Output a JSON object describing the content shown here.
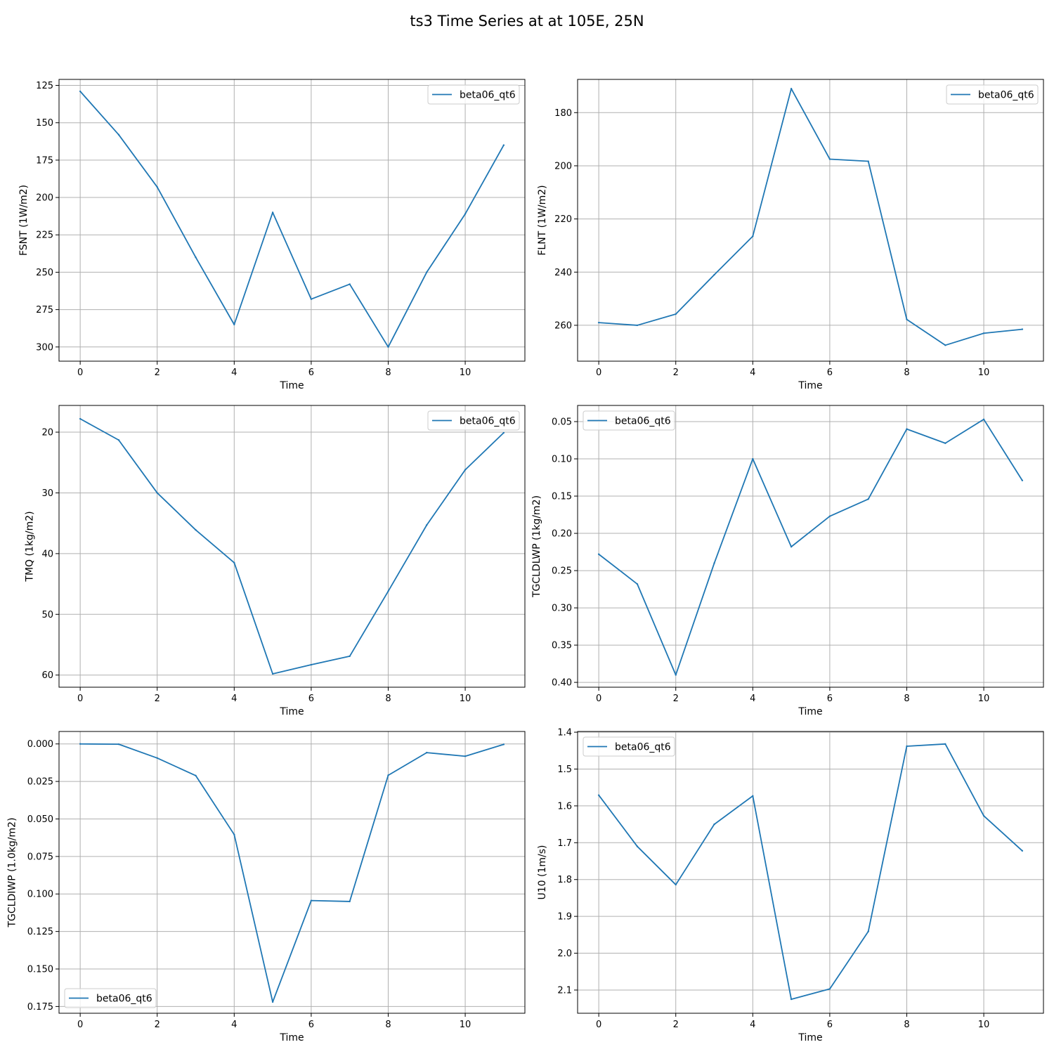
{
  "figure": {
    "title": "ts3 Time Series at at 105E, 25N"
  },
  "colors": {
    "series": "#1f77b4",
    "grid": "#b0b0b0",
    "background": "#ffffff"
  },
  "chart_data": [
    {
      "type": "line",
      "xlabel": "Time",
      "ylabel": "FSNT (1W/m2)",
      "xlim": [
        -0.55,
        11.55
      ],
      "ylim": [
        309.5,
        121
      ],
      "y_inverted": true,
      "xticks": [
        0,
        2,
        4,
        6,
        8,
        10
      ],
      "xtick_labels": [
        "0",
        "2",
        "4",
        "6",
        "8",
        "10"
      ],
      "yticks": [
        125,
        150,
        175,
        200,
        225,
        250,
        275,
        300
      ],
      "ytick_labels": [
        "125",
        "150",
        "175",
        "200",
        "225",
        "250",
        "275",
        "300"
      ],
      "grid": true,
      "legend_position": "upper right",
      "series": [
        {
          "name": "beta06_qt6",
          "x": [
            0,
            1,
            2,
            3,
            4,
            5,
            6,
            7,
            8,
            9,
            10,
            11
          ],
          "y": [
            129,
            158,
            193,
            240,
            285,
            210,
            268,
            258,
            300,
            250,
            211,
            165
          ]
        }
      ]
    },
    {
      "type": "line",
      "xlabel": "Time",
      "ylabel": "FLNT (1W/m2)",
      "xlim": [
        -0.55,
        11.55
      ],
      "ylim": [
        273.5,
        167.5
      ],
      "y_inverted": true,
      "xticks": [
        0,
        2,
        4,
        6,
        8,
        10
      ],
      "xtick_labels": [
        "0",
        "2",
        "4",
        "6",
        "8",
        "10"
      ],
      "yticks": [
        180,
        200,
        220,
        240,
        260
      ],
      "ytick_labels": [
        "180",
        "200",
        "220",
        "240",
        "260"
      ],
      "grid": true,
      "legend_position": "upper right",
      "series": [
        {
          "name": "beta06_qt6",
          "x": [
            0,
            1,
            2,
            3,
            4,
            5,
            6,
            7,
            8,
            9,
            10,
            11
          ],
          "y": [
            259,
            260,
            255.8,
            241,
            226.5,
            171,
            197.5,
            198.3,
            257.8,
            267.5,
            263,
            261.5
          ]
        }
      ]
    },
    {
      "type": "line",
      "xlabel": "Time",
      "ylabel": "TMQ (1kg/m2)",
      "xlim": [
        -0.55,
        11.55
      ],
      "ylim": [
        62,
        15.6
      ],
      "y_inverted": true,
      "xticks": [
        0,
        2,
        4,
        6,
        8,
        10
      ],
      "xtick_labels": [
        "0",
        "2",
        "4",
        "6",
        "8",
        "10"
      ],
      "yticks": [
        20,
        30,
        40,
        50,
        60
      ],
      "ytick_labels": [
        "20",
        "30",
        "40",
        "50",
        "60"
      ],
      "grid": true,
      "legend_position": "upper right",
      "series": [
        {
          "name": "beta06_qt6",
          "x": [
            0,
            1,
            2,
            3,
            4,
            5,
            6,
            7,
            8,
            9,
            10,
            11
          ],
          "y": [
            17.8,
            21.3,
            30,
            36.1,
            41.5,
            59.8,
            58.3,
            56.9,
            46.2,
            35.3,
            26.2,
            20.1
          ]
        }
      ]
    },
    {
      "type": "line",
      "xlabel": "Time",
      "ylabel": "TGCLDLWP (1kg/m2)",
      "xlim": [
        -0.55,
        11.55
      ],
      "ylim": [
        0.4065,
        0.0283
      ],
      "y_inverted": true,
      "xticks": [
        0,
        2,
        4,
        6,
        8,
        10
      ],
      "xtick_labels": [
        "0",
        "2",
        "4",
        "6",
        "8",
        "10"
      ],
      "yticks": [
        0.05,
        0.1,
        0.15,
        0.2,
        0.25,
        0.3,
        0.35,
        0.4
      ],
      "ytick_labels": [
        "0.05",
        "0.10",
        "0.15",
        "0.20",
        "0.25",
        "0.30",
        "0.35",
        "0.40"
      ],
      "grid": true,
      "legend_position": "upper left",
      "series": [
        {
          "name": "beta06_qt6",
          "x": [
            0,
            1,
            2,
            3,
            4,
            5,
            6,
            7,
            8,
            9,
            10,
            11
          ],
          "y": [
            0.228,
            0.268,
            0.39,
            0.24,
            0.1,
            0.218,
            0.177,
            0.154,
            0.06,
            0.079,
            0.047,
            0.129
          ]
        }
      ]
    },
    {
      "type": "line",
      "xlabel": "Time",
      "ylabel": "TGCLDIWP (1.0kg/m2)",
      "xlim": [
        -0.55,
        11.55
      ],
      "ylim": [
        0.1795,
        -0.0083
      ],
      "y_inverted": true,
      "xticks": [
        0,
        2,
        4,
        6,
        8,
        10
      ],
      "xtick_labels": [
        "0",
        "2",
        "4",
        "6",
        "8",
        "10"
      ],
      "yticks": [
        0,
        0.025,
        0.05,
        0.075,
        0.1,
        0.125,
        0.15,
        0.175
      ],
      "ytick_labels": [
        "0.000",
        "0.025",
        "0.050",
        "0.075",
        "0.100",
        "0.125",
        "0.150",
        "0.175"
      ],
      "grid": true,
      "legend_position": "lower left",
      "series": [
        {
          "name": "beta06_qt6",
          "x": [
            0,
            1,
            2,
            3,
            4,
            5,
            6,
            7,
            8,
            9,
            10,
            11
          ],
          "y": [
            0,
            0.0002,
            0.0094,
            0.0211,
            0.0604,
            0.172,
            0.1044,
            0.105,
            0.0209,
            0.0058,
            0.0082,
            0.0003
          ]
        }
      ]
    },
    {
      "type": "line",
      "xlabel": "Time",
      "ylabel": "U10 (1m/s)",
      "xlim": [
        -0.55,
        11.55
      ],
      "ylim": [
        2.163,
        1.398
      ],
      "y_inverted": true,
      "xticks": [
        0,
        2,
        4,
        6,
        8,
        10
      ],
      "xtick_labels": [
        "0",
        "2",
        "4",
        "6",
        "8",
        "10"
      ],
      "yticks": [
        1.4,
        1.5,
        1.6,
        1.7,
        1.8,
        1.9,
        2.0,
        2.1
      ],
      "ytick_labels": [
        "1.4",
        "1.5",
        "1.6",
        "1.7",
        "1.8",
        "1.9",
        "2.0",
        "2.1"
      ],
      "grid": true,
      "legend_position": "upper left",
      "series": [
        {
          "name": "beta06_qt6",
          "x": [
            0,
            1,
            2,
            3,
            4,
            5,
            6,
            7,
            8,
            9,
            10,
            11
          ],
          "y": [
            1.571,
            1.71,
            1.814,
            1.65,
            1.573,
            2.125,
            2.097,
            1.941,
            1.438,
            1.432,
            1.627,
            1.722
          ]
        }
      ]
    }
  ]
}
